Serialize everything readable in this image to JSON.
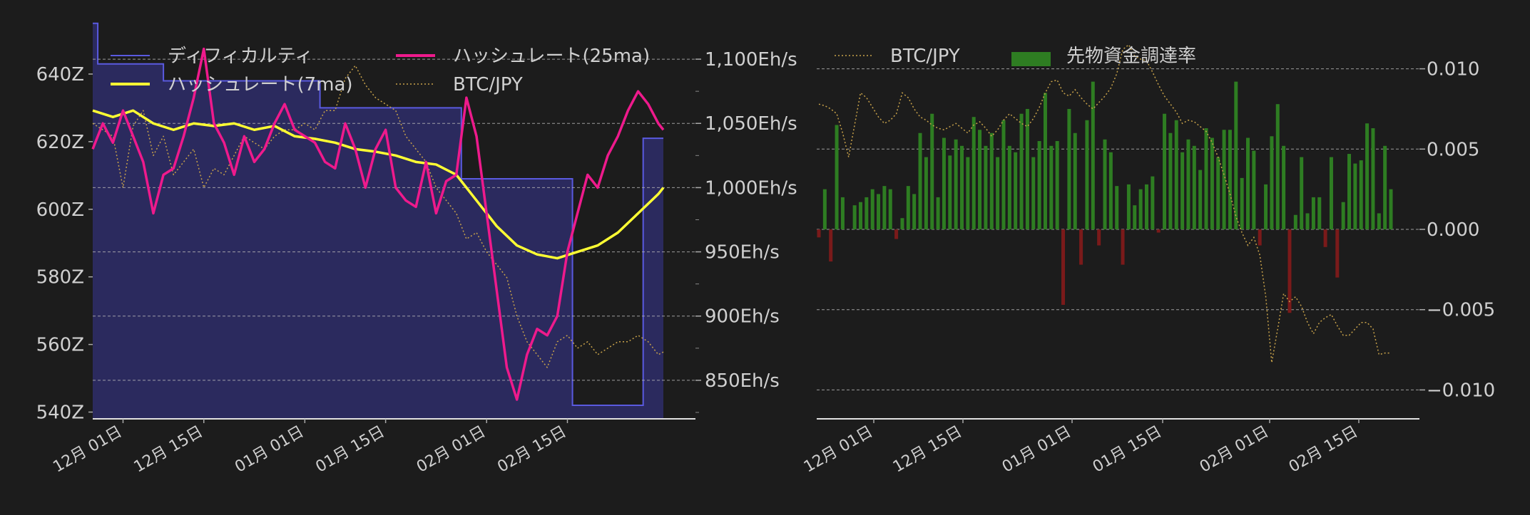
{
  "colors": {
    "background": "#1c1c1c",
    "difficulty_fill": "#2b2a5e",
    "difficulty_line": "#5a5ae0",
    "hashrate_7ma": "#ffff33",
    "hashrate_25ma": "#ee1a8c",
    "btcjpy": "#c8a24a",
    "funding_positive": "#2e7d22",
    "funding_negative": "#7a1a1a",
    "grid": "#bbbbbb"
  },
  "chart_data": [
    {
      "type": "line",
      "x_tick_labels": [
        "12月 01日",
        "12月 15日",
        "01月 01日",
        "01月 15日",
        "02月 01日",
        "02月 15日"
      ],
      "y_left": {
        "ticks": [
          540,
          560,
          580,
          600,
          620,
          640
        ],
        "tick_labels": [
          "540Z",
          "560Z",
          "580Z",
          "600Z",
          "620Z",
          "640Z"
        ],
        "range": [
          538,
          652
        ]
      },
      "y_right": {
        "ticks": [
          850,
          900,
          950,
          1000,
          1050,
          1100
        ],
        "tick_labels": [
          "850Eh/s",
          "900Eh/s",
          "950Eh/s",
          "1,000Eh/s",
          "1,050Eh/s",
          "1,100Eh/s"
        ],
        "range": [
          820,
          1120
        ]
      },
      "legend": [
        "ディフィカルティ",
        "ハッシュレート(25ma)",
        "ハッシュレート(7ma)",
        "BTC/JPY"
      ],
      "series": [
        {
          "name": "ディフィカルティ",
          "axis": "left",
          "style": "step-area",
          "x": [
            0,
            1,
            3,
            14,
            21,
            35,
            45,
            57,
            73,
            89,
            95,
            100,
            109,
            113
          ],
          "values": [
            655,
            643,
            643,
            638,
            638,
            638,
            630,
            630,
            609,
            609,
            542,
            542,
            621,
            621
          ]
        },
        {
          "name": "ハッシュレート(7ma)",
          "axis": "right",
          "style": "line",
          "x": [
            0,
            2,
            4,
            6,
            8,
            10,
            12,
            14,
            16,
            18,
            20,
            22,
            24,
            26,
            28,
            30,
            32,
            34,
            36,
            38,
            40,
            42,
            44,
            46,
            48,
            50,
            52,
            54,
            56,
            58,
            60,
            62,
            64,
            66,
            68,
            70,
            72,
            74,
            76,
            78,
            80,
            82,
            84,
            86,
            88,
            90,
            92,
            94,
            96,
            98,
            100,
            102,
            104,
            106,
            108,
            110,
            112,
            113
          ],
          "values": [
            1030,
            1050,
            1035,
            1060,
            1040,
            1020,
            980,
            1010,
            1015,
            1040,
            1070,
            1108,
            1050,
            1035,
            1010,
            1040,
            1020,
            1030,
            1050,
            1065,
            1045,
            1040,
            1035,
            1020,
            1015,
            1050,
            1030,
            1000,
            1030,
            1045,
            1000,
            990,
            985,
            1020,
            980,
            1005,
            1010,
            1070,
            1040,
            980,
            920,
            860,
            835,
            870,
            890,
            885,
            900,
            950,
            980,
            1010,
            1000,
            1025,
            1040,
            1060,
            1075,
            1065,
            1050,
            1045
          ]
        },
        {
          "name": "ハッシュレート(25ma)",
          "axis": "right",
          "style": "line",
          "x": [
            0,
            4,
            8,
            12,
            16,
            20,
            24,
            28,
            32,
            36,
            40,
            44,
            48,
            52,
            56,
            60,
            64,
            68,
            72,
            76,
            80,
            84,
            88,
            92,
            96,
            100,
            104,
            108,
            112,
            113
          ],
          "values": [
            1060,
            1055,
            1060,
            1050,
            1045,
            1050,
            1048,
            1050,
            1045,
            1048,
            1040,
            1038,
            1035,
            1030,
            1028,
            1025,
            1020,
            1018,
            1010,
            990,
            970,
            955,
            948,
            945,
            950,
            955,
            965,
            980,
            995,
            1000
          ]
        },
        {
          "name": "BTC/JPY",
          "axis": "right",
          "style": "dotted",
          "x": [
            0,
            2,
            4,
            6,
            8,
            10,
            12,
            14,
            16,
            18,
            20,
            22,
            24,
            26,
            28,
            30,
            32,
            34,
            36,
            38,
            40,
            42,
            44,
            46,
            48,
            50,
            52,
            54,
            56,
            58,
            60,
            62,
            64,
            66,
            68,
            70,
            72,
            74,
            76,
            78,
            80,
            82,
            84,
            86,
            88,
            90,
            92,
            94,
            96,
            98,
            100,
            102,
            104,
            106,
            108,
            110,
            112,
            113
          ],
          "values": [
            1050,
            1045,
            1040,
            1000,
            1048,
            1060,
            1025,
            1040,
            1010,
            1020,
            1030,
            1000,
            1015,
            1010,
            1025,
            1040,
            1035,
            1030,
            1040,
            1045,
            1045,
            1050,
            1045,
            1060,
            1060,
            1085,
            1095,
            1080,
            1070,
            1065,
            1060,
            1040,
            1030,
            1020,
            1000,
            990,
            980,
            960,
            965,
            950,
            940,
            930,
            900,
            880,
            870,
            860,
            880,
            885,
            875,
            880,
            870,
            875,
            880,
            880,
            885,
            880,
            870,
            872
          ]
        }
      ]
    },
    {
      "type": "bar",
      "x_tick_labels": [
        "12月 01日",
        "12月 15日",
        "01月 01日",
        "01月 15日",
        "02月 01日",
        "02月 15日"
      ],
      "y_right": {
        "ticks": [
          -0.01,
          -0.005,
          0.0,
          0.005,
          0.01
        ],
        "tick_labels": [
          "−0.010",
          "−0.005",
          "0.000",
          "0.005",
          "0.010"
        ],
        "range": [
          -0.0118,
          0.0122
        ]
      },
      "legend": [
        "BTC/JPY",
        "先物資金調達率"
      ],
      "series": [
        {
          "name": "先物資金調達率",
          "style": "bar",
          "values": [
            -0.0005,
            0.0025,
            -0.002,
            0.0065,
            0.002,
            0,
            0.0015,
            0.0017,
            0.002,
            0.0025,
            0.0022,
            0.0027,
            0.0025,
            -0.0006,
            0.0007,
            0.0027,
            0.0022,
            0.006,
            0.0045,
            0.0072,
            0.002,
            0.0057,
            0.0046,
            0.0056,
            0.0052,
            0.0045,
            0.007,
            0.0062,
            0.0052,
            0.006,
            0.0045,
            0.0068,
            0.0052,
            0.0048,
            0.0072,
            0.0075,
            0.0045,
            0.0055,
            0.0085,
            0.0052,
            0.0055,
            -0.0047,
            0.0075,
            0.006,
            -0.0022,
            0.0068,
            0.0092,
            -0.001,
            0.0056,
            0.0048,
            0.0027,
            -0.0022,
            0.0028,
            0.0015,
            0.0025,
            0.0028,
            0.0033,
            -0.0002,
            0.0072,
            0.006,
            0.0068,
            0.0048,
            0.0056,
            0.0052,
            0.0037,
            0.0063,
            0.0057,
            0.0045,
            0.0062,
            0.0062,
            0.0092,
            0.0032,
            0.0057,
            0.0049,
            -0.001,
            0.0028,
            0.0058,
            0.0078,
            0.0052,
            -0.0052,
            0.0009,
            0.0045,
            0.001,
            0.002,
            0.002,
            -0.0011,
            0.0045,
            -0.003,
            0.0017,
            0.0047,
            0.0041,
            0.0043,
            0.0066,
            0.0063,
            0.001,
            0.0052,
            0.0025
          ]
        },
        {
          "name": "BTC/JPY",
          "style": "dotted",
          "axis": "right",
          "values": [
            0.0078,
            0.0077,
            0.0075,
            0.0072,
            0.006,
            0.0045,
            0.0065,
            0.0085,
            0.0082,
            0.0076,
            0.007,
            0.0066,
            0.0068,
            0.0072,
            0.0085,
            0.0082,
            0.0075,
            0.007,
            0.0068,
            0.0065,
            0.0063,
            0.0062,
            0.0064,
            0.0066,
            0.0063,
            0.006,
            0.0065,
            0.0067,
            0.0063,
            0.0058,
            0.0062,
            0.0068,
            0.0072,
            0.0069,
            0.0066,
            0.0064,
            0.0069,
            0.0076,
            0.0085,
            0.0092,
            0.0093,
            0.0085,
            0.0083,
            0.0087,
            0.0082,
            0.0078,
            0.0075,
            0.0079,
            0.0083,
            0.0088,
            0.0097,
            0.0112,
            0.0115,
            0.0108,
            0.0106,
            0.0105,
            0.0098,
            0.009,
            0.0083,
            0.0078,
            0.0073,
            0.0066,
            0.0068,
            0.0067,
            0.0064,
            0.0061,
            0.0054,
            0.0045,
            0.0034,
            0.0022,
            0.0008,
            -0.0002,
            -0.001,
            -0.0005,
            -0.0016,
            -0.0042,
            -0.0083,
            -0.0062,
            -0.004,
            -0.0045,
            -0.0042,
            -0.0048,
            -0.0058,
            -0.0065,
            -0.0058,
            -0.0055,
            -0.0053,
            -0.006,
            -0.0066,
            -0.0066,
            -0.0062,
            -0.0058,
            -0.0058,
            -0.0062,
            -0.0078,
            -0.0077,
            -0.0077
          ]
        }
      ]
    }
  ]
}
